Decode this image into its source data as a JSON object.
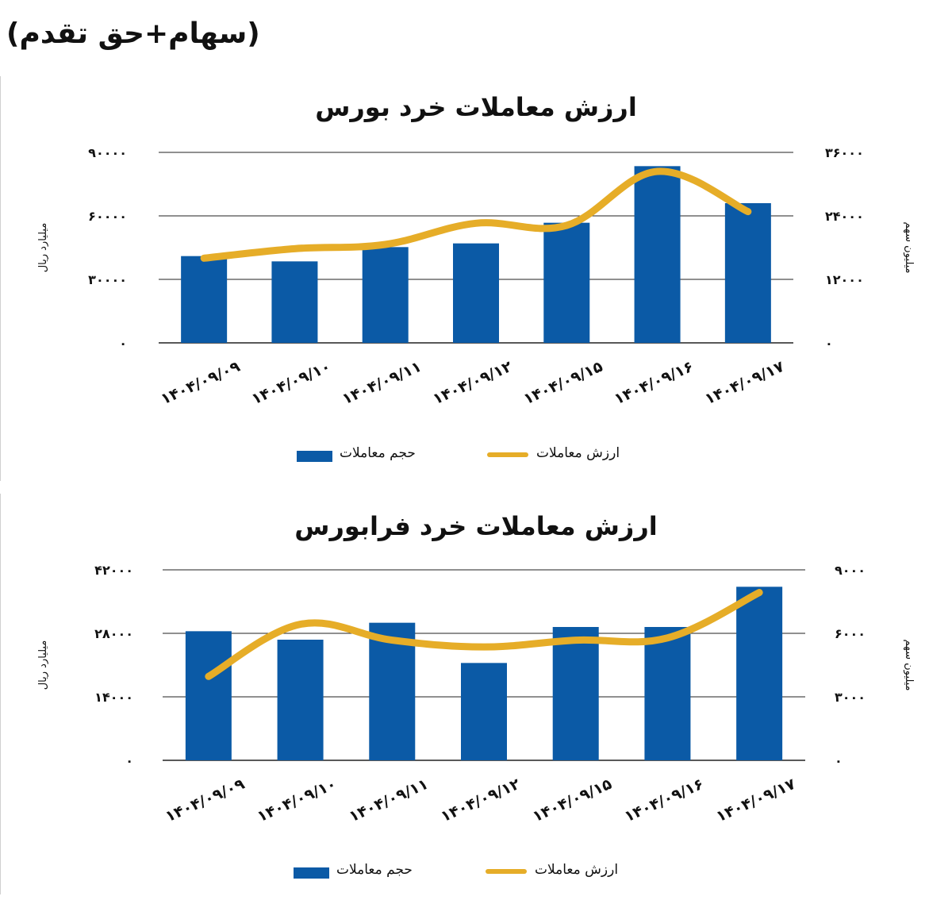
{
  "page_heading": "(سهام+حق تقدم)",
  "legend": {
    "bar_label": "حجم معاملات",
    "line_label": "ارزش معاملات"
  },
  "colors": {
    "bar": "#0b5aa6",
    "line": "#e6ad28",
    "grid": "#222222"
  },
  "chart_data": [
    {
      "type": "bar+line",
      "title": "ارزش معاملات خرد بورس",
      "categories": [
        "۱۴۰۴/۰۹/۰۹",
        "۱۴۰۴/۰۹/۱۰",
        "۱۴۰۴/۰۹/۱۱",
        "۱۴۰۴/۰۹/۱۲",
        "۱۴۰۴/۰۹/۱۵",
        "۱۴۰۴/۰۹/۱۶",
        "۱۴۰۴/۰۹/۱۷"
      ],
      "left_axis": {
        "label": "میلیارد ریال",
        "ylim": [
          0,
          90000
        ],
        "ticks": [
          0,
          30000,
          60000,
          90000
        ],
        "tick_labels": [
          "۰",
          "۳۰۰۰۰",
          "۶۰۰۰۰",
          "۹۰۰۰۰"
        ]
      },
      "right_axis": {
        "label": "میلیون سهم",
        "ylim": [
          0,
          36000
        ],
        "ticks": [
          0,
          12000,
          24000,
          36000
        ],
        "tick_labels": [
          "۰",
          "۱۲۰۰۰",
          "۲۴۰۰۰",
          "۳۶۰۰۰"
        ]
      },
      "series": [
        {
          "name": "حجم معاملات",
          "type": "bar",
          "axis": "right",
          "values": [
            16400,
            15400,
            18100,
            18800,
            22700,
            33400,
            26400
          ]
        },
        {
          "name": "ارزش معاملات",
          "type": "line",
          "axis": "left",
          "values": [
            40000,
            44500,
            46500,
            56500,
            55500,
            81000,
            62000
          ]
        }
      ],
      "grid": true,
      "legend_position": "bottom"
    },
    {
      "type": "bar+line",
      "title": "ارزش معاملات خرد فرابورس",
      "categories": [
        "۱۴۰۴/۰۹/۰۹",
        "۱۴۰۴/۰۹/۱۰",
        "۱۴۰۴/۰۹/۱۱",
        "۱۴۰۴/۰۹/۱۲",
        "۱۴۰۴/۰۹/۱۵",
        "۱۴۰۴/۰۹/۱۶",
        "۱۴۰۴/۰۹/۱۷"
      ],
      "left_axis": {
        "label": "میلیارد ریال",
        "ylim": [
          0,
          42000
        ],
        "ticks": [
          0,
          14000,
          28000,
          42000
        ],
        "tick_labels": [
          "۰",
          "۱۴۰۰۰",
          "۲۸۰۰۰",
          "۴۲۰۰۰"
        ]
      },
      "right_axis": {
        "label": "میلیون سهم",
        "ylim": [
          0,
          9000
        ],
        "ticks": [
          0,
          3000,
          6000,
          9000
        ],
        "tick_labels": [
          "۰",
          "۳۰۰۰",
          "۶۰۰۰",
          "۹۰۰۰"
        ]
      },
      "series": [
        {
          "name": "حجم معاملات",
          "type": "bar",
          "axis": "right",
          "values": [
            6100,
            5700,
            6500,
            4600,
            6300,
            6300,
            8200
          ]
        },
        {
          "name": "ارزش معاملات",
          "type": "line",
          "axis": "left",
          "values": [
            18500,
            30000,
            26500,
            25000,
            26500,
            27000,
            37000
          ]
        }
      ],
      "grid": true,
      "legend_position": "bottom"
    }
  ]
}
